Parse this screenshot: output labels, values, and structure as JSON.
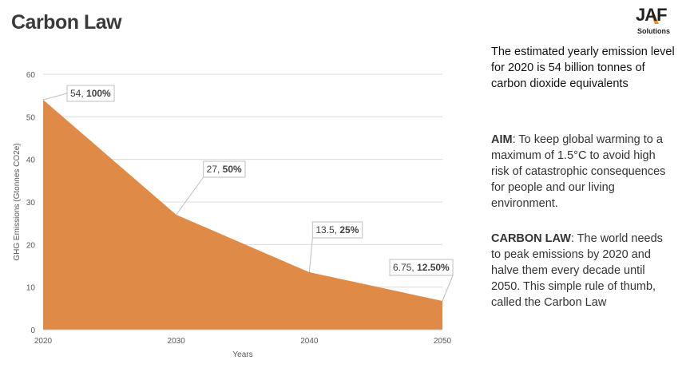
{
  "header": {
    "title": "Carbon Law"
  },
  "logo": {
    "mark": "JAF",
    "subtitle": "Solutions",
    "accent_color": "#f08a24"
  },
  "side_text": {
    "intro": "The estimated yearly emission level for 2020 is 54 billion tonnes of carbon dioxide equivalents",
    "aim_label": "AIM",
    "aim_text": ": To keep global warming to a maximum of 1.5°C to avoid high risk of catastrophic consequences for people and our living environment.",
    "law_label": "CARBON LAW",
    "law_text": ": The world needs to peak emissions by 2020 and halve them every decade until 2050. This simple rule of thumb, called the Carbon Law"
  },
  "chart_data": {
    "type": "area",
    "x": [
      2020,
      2030,
      2040,
      2050
    ],
    "values": [
      54,
      27,
      13.5,
      6.75
    ],
    "data_labels": [
      {
        "value": "54",
        "percent": "100%"
      },
      {
        "value": "27",
        "percent": "50%"
      },
      {
        "value": "13.5",
        "percent": "25%"
      },
      {
        "value": "6.75",
        "percent": "12.50%"
      }
    ],
    "xlabel": "Years",
    "ylabel": "GHG Emissions (Gtonnes CO2e)",
    "ylim": [
      0,
      60
    ],
    "yticks": [
      0,
      10,
      20,
      30,
      40,
      50,
      60
    ],
    "xticks": [
      2020,
      2030,
      2040,
      2050
    ],
    "grid": true,
    "fill_color": "#e08a47"
  }
}
